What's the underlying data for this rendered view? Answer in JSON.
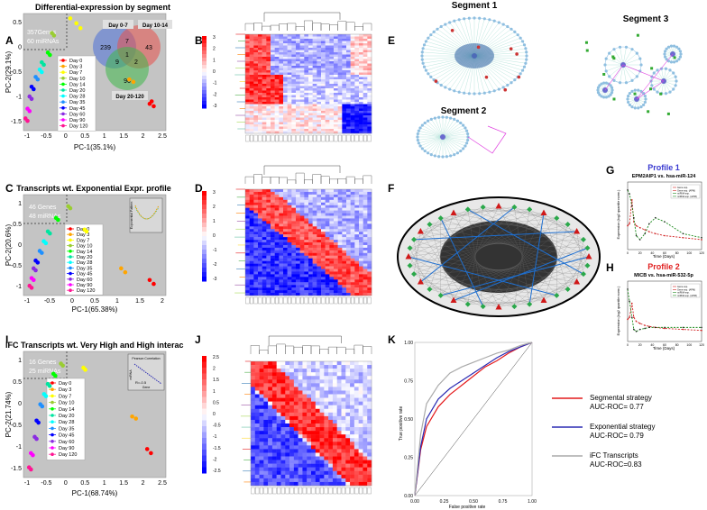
{
  "panel_labels": {
    "A": "A",
    "B": "B",
    "C": "C",
    "D": "D",
    "E": "E",
    "F": "F",
    "G": "G",
    "H": "H",
    "I": "I",
    "J": "J",
    "K": "K"
  },
  "colors": {
    "plot_bg": "#c4c4c4",
    "days": [
      "#ff0000",
      "#ffa500",
      "#ffff00",
      "#9acd32",
      "#00ff00",
      "#00e5a0",
      "#00ffff",
      "#1e90ff",
      "#0000ff",
      "#8a2be2",
      "#ff00ff",
      "#ff1493"
    ]
  },
  "legend_days": [
    "Day 0",
    "Day 3",
    "Day 7",
    "Day 10",
    "Day 14",
    "Day 20",
    "Day 28",
    "Day 35",
    "Day 45",
    "Day 60",
    "Day 90",
    "Day 120"
  ],
  "A": {
    "title": "Differential-expression by segment",
    "info_genes": "357Genes",
    "info_mirnas": "60 miRNAs",
    "xlabel": "PC-1(35.1%)",
    "ylabel": "PC-2(29.1%)",
    "xticks": [
      "-1",
      "-0.5",
      "0",
      "0.5",
      "1",
      "1.5",
      "2",
      "2.5"
    ],
    "yticks": [
      "0.5",
      "0",
      "-0.5",
      "-1",
      "-1.5"
    ],
    "venn": {
      "day0_7": "Day 0-7",
      "day10_14": "Day 10-14",
      "day20_120": "Day 20-120",
      "n_a": "239",
      "n_b": "43",
      "n_c": "96",
      "n_ab": "7",
      "n_ac": "9",
      "n_bc": "2",
      "n_abc": "1"
    }
  },
  "C": {
    "title": "Transcripts wt. Exponential Expr. profile",
    "info_genes": "46 Genes",
    "info_mirnas": "48 miRNAs",
    "xlabel": "PC-1(65.38%)",
    "ylabel": "PC-2(20.6%)",
    "xticks": [
      "-1",
      "-0.5",
      "0",
      "0.5",
      "1",
      "1.5",
      "2"
    ],
    "yticks": [
      "1",
      "0.5",
      "0",
      "-0.5",
      "-1"
    ],
    "inset_ylabel": "Exponential Pattern"
  },
  "I": {
    "title": "iFC Transcripts wt. Very High and High interac.",
    "info_genes": "16 Genes",
    "info_mirnas": "25 miRNAs",
    "xlabel": "PC-1(68.74%)",
    "ylabel": "PC-2(21.74%)",
    "xticks": [
      "-1",
      "-0.5",
      "0",
      "0.5",
      "1",
      "1.5",
      "2",
      "2.5"
    ],
    "yticks": [
      "1",
      "0.5",
      "0",
      "-0.5",
      "-1",
      "-1.5"
    ],
    "inset_title": "Pearson Correlation",
    "inset_xlabel": "Gene",
    "inset_ylabel": "miRNA",
    "inset_r": "R=-0.5"
  },
  "B": {
    "scale": [
      "3",
      "2",
      "1",
      "0",
      "-1",
      "-2",
      "-3"
    ]
  },
  "D": {
    "scale": [
      "3",
      "2",
      "1",
      "0",
      "-1",
      "-2",
      "-3"
    ]
  },
  "J": {
    "scale": [
      "2.5",
      "2",
      "1.5",
      "1",
      "0.5",
      "0",
      "-0.5",
      "-1",
      "-1.5",
      "-2",
      "-2.5"
    ]
  },
  "E": {
    "seg1": "Segment 1",
    "seg2": "Segment 2",
    "seg3": "Segment 3"
  },
  "G": {
    "title_profile": "Profile 1",
    "subtitle": "EPM2AIP1 vs. hsa-miR-124",
    "xlabel": "Time (Days)",
    "ylabel": "Expression (log2 quantile norm.)",
    "xticks": [
      "0",
      "20",
      "40",
      "60",
      "80",
      "100",
      "120"
    ],
    "legend": [
      "Gene exp.",
      "Gene exp. (APM)",
      "miRNA exp.",
      "miRNA exp. (APM)"
    ]
  },
  "H": {
    "title_profile": "Profile 2",
    "subtitle": "MICB vs. hsa-miR-532-5p",
    "xlabel": "Time (Days)",
    "ylabel": "Expression (log2 quantile norm.)",
    "xticks": [
      "0",
      "20",
      "40",
      "60",
      "80",
      "100",
      "120"
    ],
    "legend": [
      "Gene exp.",
      "Gene exp. (APM)",
      "miRNA exp.",
      "miRNA exp. (APM)"
    ]
  },
  "K": {
    "xlabel": "False positive rate",
    "ylabel": "True positive rate",
    "xticks": [
      "0.00",
      "0.25",
      "0.50",
      "0.75",
      "1.00"
    ],
    "yticks": [
      "1.00",
      "0.75",
      "0.50",
      "0.25",
      "0.00"
    ],
    "legend": [
      {
        "name": "Segmental strategy",
        "auc": "AUC-ROC= 0.77",
        "color": "#e41a1c"
      },
      {
        "name": "Exponential strategy",
        "auc": "AUC-ROC= 0.79",
        "color": "#2b2bb3"
      },
      {
        "name": "iFC Transcripts",
        "auc": "AUC-ROC=0.83",
        "color": "#aaaaaa"
      }
    ]
  },
  "chart_data": [
    {
      "type": "scatter",
      "panel": "A",
      "title": "Differential-expression by segment",
      "xlabel": "PC-1(35.1%)",
      "ylabel": "PC-2(29.1%)",
      "xlim": [
        -1,
        2.5
      ],
      "ylim": [
        -1.6,
        0.8
      ],
      "series": [
        {
          "name": "Day 0",
          "x": [
            2.1,
            2.2,
            2.15
          ],
          "y": [
            -1.05,
            -1.1,
            -1.0
          ]
        },
        {
          "name": "Day 3",
          "x": [
            1.6,
            1.7
          ],
          "y": [
            -0.55,
            -0.6
          ]
        },
        {
          "name": "Day 7",
          "x": [
            0.15,
            0.3,
            0.4
          ],
          "y": [
            0.7,
            0.6,
            0.5
          ]
        },
        {
          "name": "Day 10",
          "x": [
            -0.3,
            -0.25
          ],
          "y": [
            0.4,
            0.35
          ]
        },
        {
          "name": "Day 14",
          "x": [
            -0.4,
            -0.35
          ],
          "y": [
            0.0,
            -0.05
          ]
        },
        {
          "name": "Day 20",
          "x": [
            -0.55,
            -0.5
          ],
          "y": [
            -0.2,
            -0.25
          ]
        },
        {
          "name": "Day 28",
          "x": [
            -0.6,
            -0.55
          ],
          "y": [
            -0.35,
            -0.4
          ]
        },
        {
          "name": "Day 35",
          "x": [
            -0.7,
            -0.65
          ],
          "y": [
            -0.5,
            -0.55
          ]
        },
        {
          "name": "Day 45",
          "x": [
            -0.8,
            -0.75
          ],
          "y": [
            -0.7,
            -0.75
          ]
        },
        {
          "name": "Day 60",
          "x": [
            -0.85,
            -0.8
          ],
          "y": [
            -0.9,
            -0.95
          ]
        },
        {
          "name": "Day 90",
          "x": [
            -0.9,
            -0.85
          ],
          "y": [
            -1.15,
            -1.2
          ]
        },
        {
          "name": "Day 120",
          "x": [
            -0.95,
            -0.9
          ],
          "y": [
            -1.35,
            -1.4
          ]
        }
      ]
    },
    {
      "type": "scatter",
      "panel": "C",
      "title": "Transcripts wt. Exponential Expr. profile",
      "xlabel": "PC-1(65.38%)",
      "ylabel": "PC-2(20.6%)",
      "xlim": [
        -1.2,
        2.3
      ],
      "ylim": [
        -1.3,
        1.3
      ],
      "series": [
        {
          "name": "Day 0",
          "x": [
            1.9,
            2.0
          ],
          "y": [
            -0.9,
            -1.0
          ]
        },
        {
          "name": "Day 3",
          "x": [
            1.2,
            1.3
          ],
          "y": [
            -0.6,
            -0.7
          ]
        },
        {
          "name": "Day 7",
          "x": [
            0.3,
            0.35
          ],
          "y": [
            0.4,
            0.35
          ]
        },
        {
          "name": "Day 10",
          "x": [
            -0.1,
            -0.05
          ],
          "y": [
            1.0,
            0.95
          ]
        },
        {
          "name": "Day 14",
          "x": [
            -0.4,
            -0.35
          ],
          "y": [
            0.7,
            0.65
          ]
        },
        {
          "name": "Day 20",
          "x": [
            -0.6,
            -0.55
          ],
          "y": [
            0.35,
            0.3
          ]
        },
        {
          "name": "Day 28",
          "x": [
            -0.7,
            -0.65
          ],
          "y": [
            0.1,
            0.05
          ]
        },
        {
          "name": "Day 35",
          "x": [
            -0.8,
            -0.75
          ],
          "y": [
            -0.15,
            -0.2
          ]
        },
        {
          "name": "Day 45",
          "x": [
            -0.9,
            -0.85
          ],
          "y": [
            -0.4,
            -0.45
          ]
        },
        {
          "name": "Day 60",
          "x": [
            -0.95,
            -0.9
          ],
          "y": [
            -0.6,
            -0.65
          ]
        },
        {
          "name": "Day 90",
          "x": [
            -1.0,
            -0.95
          ],
          "y": [
            -0.85,
            -0.9
          ]
        },
        {
          "name": "Day 120",
          "x": [
            -1.05,
            -1.0
          ],
          "y": [
            -1.05,
            -1.1
          ]
        }
      ]
    },
    {
      "type": "scatter",
      "panel": "I",
      "title": "iFC Transcripts wt. Very High and High interac.",
      "xlabel": "PC-1(68.74%)",
      "ylabel": "PC-2(21.74%)",
      "xlim": [
        -1.2,
        2.6
      ],
      "ylim": [
        -1.8,
        1.3
      ],
      "series": [
        {
          "name": "Day 0",
          "x": [
            2.1,
            2.2
          ],
          "y": [
            -1.1,
            -1.2
          ]
        },
        {
          "name": "Day 3",
          "x": [
            1.7,
            1.8
          ],
          "y": [
            -0.3,
            -0.35
          ]
        },
        {
          "name": "Day 7",
          "x": [
            0.4,
            0.45
          ],
          "y": [
            0.9,
            0.85
          ]
        },
        {
          "name": "Day 10",
          "x": [
            -0.2,
            -0.15
          ],
          "y": [
            1.0,
            0.95
          ]
        },
        {
          "name": "Day 14",
          "x": [
            -0.4,
            -0.35
          ],
          "y": [
            0.75,
            0.7
          ]
        },
        {
          "name": "Day 20",
          "x": [
            -0.55,
            -0.5
          ],
          "y": [
            0.5,
            0.45
          ]
        },
        {
          "name": "Day 28",
          "x": [
            -0.65,
            -0.6
          ],
          "y": [
            0.25,
            0.2
          ]
        },
        {
          "name": "Day 35",
          "x": [
            -0.75,
            -0.7
          ],
          "y": [
            0.0,
            -0.05
          ]
        },
        {
          "name": "Day 45",
          "x": [
            -0.85,
            -0.8
          ],
          "y": [
            -0.4,
            -0.45
          ]
        },
        {
          "name": "Day 60",
          "x": [
            -0.9,
            -0.85
          ],
          "y": [
            -0.8,
            -0.85
          ]
        },
        {
          "name": "Day 90",
          "x": [
            -1.0,
            -0.95
          ],
          "y": [
            -1.2,
            -1.25
          ]
        },
        {
          "name": "Day 120",
          "x": [
            -1.05,
            -1.0
          ],
          "y": [
            -1.55,
            -1.6
          ]
        }
      ]
    },
    {
      "type": "line",
      "panel": "G",
      "title": "EPM2AIP1 vs. hsa-miR-124",
      "xlabel": "Time (Days)",
      "xlim": [
        0,
        120
      ],
      "x": [
        0,
        3,
        7,
        10,
        14,
        20,
        28,
        35,
        45,
        60,
        90,
        120
      ],
      "series": [
        {
          "name": "Gene exp.",
          "values": [
            0.2,
            0.3,
            1.5,
            0.4,
            0.2,
            0.1,
            0.0,
            -0.1,
            -0.2,
            -0.3,
            -0.4,
            -0.5
          ]
        },
        {
          "name": "miRNA exp.",
          "values": [
            2.0,
            1.8,
            1.2,
            0.6,
            -0.3,
            -0.5,
            -0.2,
            0.3,
            0.6,
            0.4,
            -0.2,
            -0.4
          ]
        }
      ]
    },
    {
      "type": "line",
      "panel": "H",
      "title": "MICB vs. hsa-miR-532-5p",
      "xlabel": "Time (Days)",
      "xlim": [
        0,
        120
      ],
      "x": [
        0,
        3,
        7,
        10,
        14,
        20,
        28,
        35,
        45,
        60,
        90,
        120
      ],
      "series": [
        {
          "name": "Gene exp.",
          "values": [
            0.1,
            0.2,
            0.9,
            0.2,
            0.0,
            -0.1,
            -0.2,
            -0.25,
            -0.3,
            -0.35,
            -0.4,
            -0.45
          ]
        },
        {
          "name": "miRNA exp.",
          "values": [
            1.6,
            1.0,
            0.2,
            -0.4,
            -0.5,
            -0.4,
            -0.35,
            -0.3,
            -0.3,
            -0.3,
            -0.3,
            -0.3
          ]
        }
      ]
    },
    {
      "type": "line",
      "panel": "K",
      "xlabel": "False positive rate",
      "ylabel": "True positive rate",
      "xlim": [
        0,
        1
      ],
      "ylim": [
        0,
        1
      ],
      "series": [
        {
          "name": "Segmental strategy",
          "x": [
            0,
            0.05,
            0.1,
            0.2,
            0.3,
            0.4,
            0.5,
            0.6,
            0.7,
            0.8,
            0.9,
            1.0
          ],
          "values": [
            0,
            0.3,
            0.45,
            0.58,
            0.66,
            0.72,
            0.78,
            0.84,
            0.88,
            0.93,
            0.97,
            1.0
          ]
        },
        {
          "name": "Exponential strategy",
          "x": [
            0,
            0.05,
            0.1,
            0.2,
            0.3,
            0.4,
            0.5,
            0.6,
            0.7,
            0.8,
            0.9,
            1.0
          ],
          "values": [
            0,
            0.32,
            0.5,
            0.63,
            0.7,
            0.75,
            0.8,
            0.85,
            0.9,
            0.94,
            0.97,
            1.0
          ]
        },
        {
          "name": "iFC Transcripts",
          "x": [
            0,
            0.05,
            0.1,
            0.2,
            0.3,
            0.4,
            0.5,
            0.6,
            0.7,
            0.8,
            0.9,
            1.0
          ],
          "values": [
            0,
            0.4,
            0.6,
            0.72,
            0.8,
            0.84,
            0.87,
            0.9,
            0.93,
            0.95,
            0.98,
            1.0
          ]
        }
      ]
    }
  ]
}
